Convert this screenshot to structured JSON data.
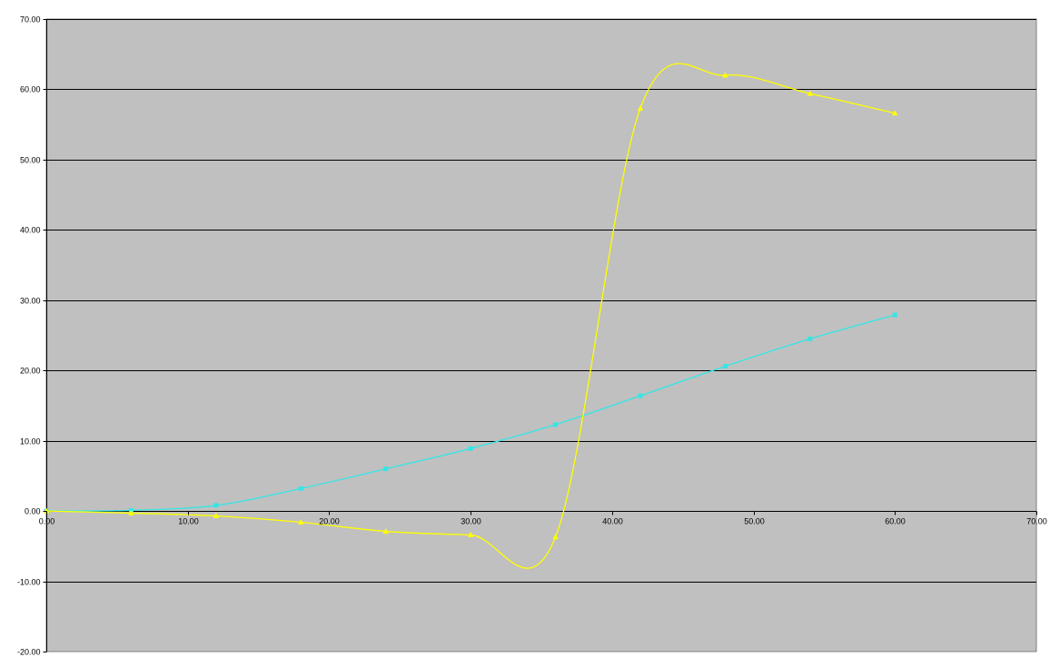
{
  "chart_data": {
    "type": "line",
    "title": "",
    "xlabel": "",
    "ylabel": "",
    "xlim": [
      0,
      70
    ],
    "ylim": [
      -20,
      70
    ],
    "x_ticks": [
      0,
      10,
      20,
      30,
      40,
      50,
      60,
      70
    ],
    "y_ticks": [
      -20,
      -10,
      0,
      10,
      20,
      30,
      40,
      50,
      60,
      70
    ],
    "x_tick_labels": [
      "0.00",
      "10.00",
      "20.00",
      "30.00",
      "40.00",
      "50.00",
      "60.00",
      "70.00"
    ],
    "y_tick_labels": [
      "-20.00",
      "-10.00",
      "0.00",
      "10.00",
      "20.00",
      "30.00",
      "40.00",
      "50.00",
      "60.00",
      "70.00"
    ],
    "grid": true,
    "legend": "none",
    "plot_background": "#c0c0c0",
    "grid_color": "#000000",
    "series": [
      {
        "color": "#33e6e6",
        "marker": "square",
        "x": [
          0,
          6,
          12,
          18,
          24,
          30,
          36,
          42,
          48,
          54,
          60
        ],
        "y": [
          0.0,
          0.1,
          0.8,
          3.2,
          6.0,
          8.9,
          12.3,
          16.4,
          20.6,
          24.5,
          27.9
        ]
      },
      {
        "color": "#ffff00",
        "marker": "triangle",
        "x": [
          0,
          6,
          12,
          18,
          24,
          30,
          36,
          42,
          48,
          54,
          60
        ],
        "y": [
          0.0,
          -0.3,
          -0.7,
          -1.6,
          -2.9,
          -3.4,
          -3.7,
          57.3,
          62.0,
          59.4,
          56.6
        ]
      }
    ]
  }
}
